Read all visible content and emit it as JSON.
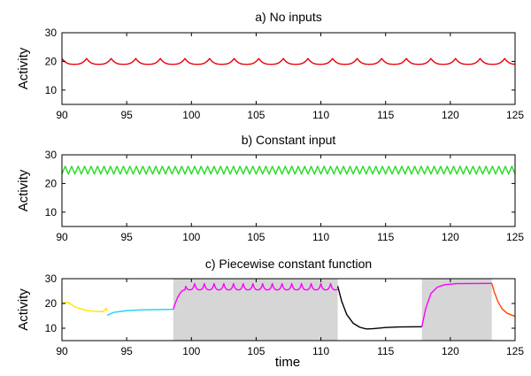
{
  "figure": {
    "xlabel": "time"
  },
  "chart_data": [
    {
      "type": "line",
      "title": "a) No inputs",
      "ylabel": "Activity",
      "xlim": [
        90,
        125
      ],
      "ylim": [
        5,
        30
      ],
      "xticks": [
        90,
        95,
        100,
        105,
        110,
        115,
        120,
        125
      ],
      "yticks": [
        10,
        20,
        30
      ],
      "shaded_intervals": [],
      "series": [
        {
          "kind": "oscillation",
          "color": "#e8000b",
          "x_start": 90,
          "x_end": 125,
          "period": 1.9,
          "low": 19.0,
          "high": 21.0,
          "shape": "cusp-up"
        }
      ]
    },
    {
      "type": "line",
      "title": "b) Constant input",
      "ylabel": "Activity",
      "xlim": [
        90,
        125
      ],
      "ylim": [
        5,
        30
      ],
      "xticks": [
        90,
        95,
        100,
        105,
        110,
        115,
        120,
        125
      ],
      "yticks": [
        10,
        20,
        30
      ],
      "shaded_intervals": [],
      "series": [
        {
          "kind": "oscillation",
          "color": "#22dd22",
          "x_start": 90,
          "x_end": 125,
          "period": 0.5,
          "low": 23.3,
          "high": 26.0,
          "shape": "zigzag"
        }
      ]
    },
    {
      "type": "line",
      "title": "c) Piecewise constant function",
      "ylabel": "Activity",
      "xlim": [
        90,
        125
      ],
      "ylim": [
        5,
        30
      ],
      "xticks": [
        90,
        95,
        100,
        105,
        110,
        115,
        120,
        125
      ],
      "yticks": [
        10,
        20,
        30
      ],
      "shaded_intervals": [
        [
          98.6,
          111.3
        ],
        [
          117.8,
          123.2
        ]
      ],
      "series": [
        {
          "kind": "points",
          "color": "#ffe600",
          "points": [
            [
              90,
              20.2
            ],
            [
              90.5,
              20.4
            ],
            [
              91,
              18.6
            ],
            [
              91.8,
              17.3
            ],
            [
              92.5,
              16.8
            ],
            [
              93.2,
              16.7
            ],
            [
              93.4,
              18.0
            ],
            [
              93.5,
              16.8
            ]
          ]
        },
        {
          "kind": "points",
          "color": "#22d3ee",
          "points": [
            [
              93.5,
              15.2
            ],
            [
              94,
              16.4
            ],
            [
              95,
              17.1
            ],
            [
              96,
              17.4
            ],
            [
              97,
              17.5
            ],
            [
              98.6,
              17.6
            ]
          ]
        },
        {
          "kind": "oscillation",
          "color": "#ff00ff",
          "x_start": 98.6,
          "x_end": 111.3,
          "period": 0.75,
          "low": 25.5,
          "high": 28.0,
          "shape": "cusp-up",
          "rise_from": 17.6,
          "rise_duration": 0.9
        },
        {
          "kind": "points",
          "color": "#000000",
          "points": [
            [
              111.3,
              27.0
            ],
            [
              111.6,
              21.0
            ],
            [
              112.0,
              15.5
            ],
            [
              112.5,
              12.0
            ],
            [
              113.0,
              10.4
            ],
            [
              113.5,
              9.7
            ],
            [
              114.0,
              9.8
            ],
            [
              115,
              10.3
            ],
            [
              116,
              10.5
            ],
            [
              117.8,
              10.6
            ]
          ]
        },
        {
          "kind": "points",
          "color": "#ff00ff",
          "points": [
            [
              117.8,
              10.6
            ],
            [
              118.1,
              18.0
            ],
            [
              118.5,
              24.0
            ],
            [
              119.0,
              26.6
            ],
            [
              119.6,
              27.6
            ],
            [
              120.5,
              28.0
            ],
            [
              123.2,
              28.1
            ]
          ]
        },
        {
          "kind": "points",
          "color": "#ff4500",
          "points": [
            [
              123.2,
              28.1
            ],
            [
              123.4,
              24.5
            ],
            [
              123.7,
              20.5
            ],
            [
              124.0,
              17.8
            ],
            [
              124.4,
              16.0
            ],
            [
              125,
              14.8
            ]
          ]
        }
      ]
    }
  ]
}
